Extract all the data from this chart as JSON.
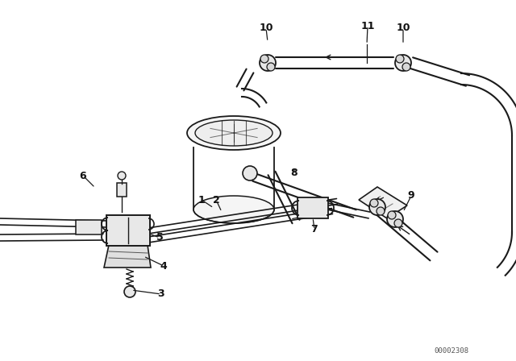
{
  "bg_color": "#ffffff",
  "line_color": "#1a1a1a",
  "text_color": "#111111",
  "watermark": "00002308",
  "lw_pipe": 1.8,
  "lw_thin": 1.2,
  "lw_med": 1.5
}
